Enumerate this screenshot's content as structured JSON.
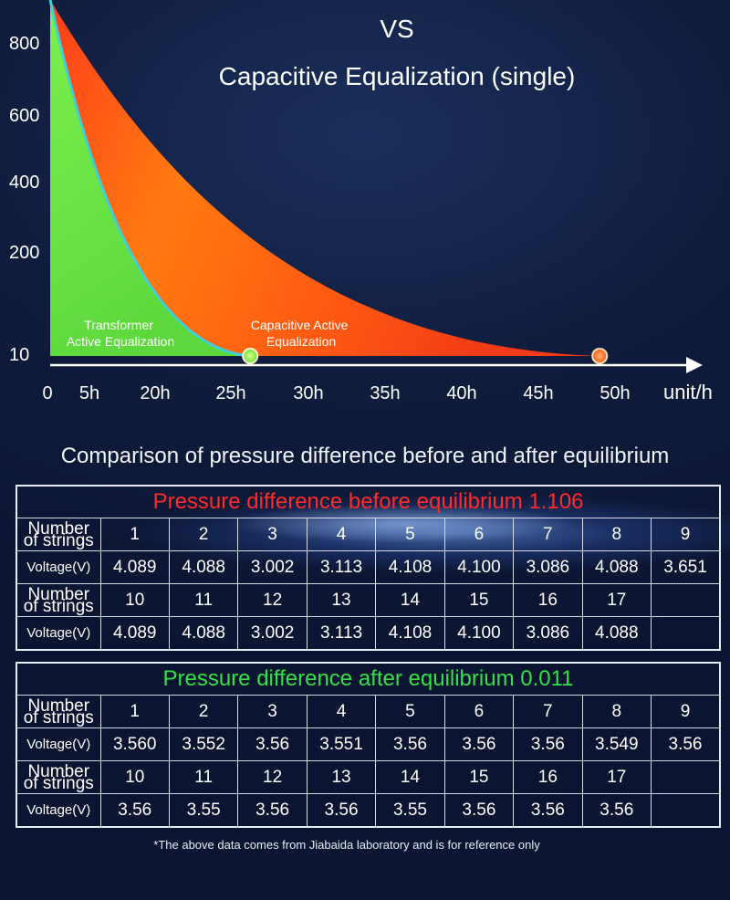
{
  "header": {
    "title_line1": "VS",
    "title_line2": "Capacitive Equalization (single)"
  },
  "chart_data": {
    "type": "area",
    "y_ticks": [
      "800",
      "600",
      "400",
      "200",
      "10"
    ],
    "x_ticks": [
      "0",
      "5h",
      "20h",
      "25h",
      "30h",
      "35h",
      "40h",
      "45h",
      "50h"
    ],
    "x_unit": "unit/h",
    "ylim": [
      10,
      900
    ],
    "series": [
      {
        "name": "Capacitive Active Equalization",
        "color": "#ff5a10",
        "start_y": 900,
        "end_x_position": 7.8,
        "end_y": 10
      },
      {
        "name": "Transformer Active Equalization",
        "color": "#7cf04e",
        "start_y": 900,
        "end_x_position": 3.25,
        "end_y": 10
      }
    ],
    "series_labels": {
      "transformer": [
        "Transformer",
        "Active Equalization"
      ],
      "capacitive": [
        "Capacitive Active",
        "Equalization"
      ]
    }
  },
  "comparison": {
    "heading": "Comparison of pressure difference before and after equilibrium",
    "row_label_strings": [
      "Number",
      "of strings"
    ],
    "row_label_voltage": "Voltage(V)",
    "before": {
      "caption": "Pressure difference before equilibrium 1.106",
      "strings_a": [
        "1",
        "2",
        "3",
        "4",
        "5",
        "6",
        "7",
        "8",
        "9"
      ],
      "voltages_a": [
        "4.089",
        "4.088",
        "3.002",
        "3.113",
        "4.108",
        "4.100",
        "3.086",
        "4.088",
        "3.651"
      ],
      "strings_b": [
        "10",
        "11",
        "12",
        "13",
        "14",
        "15",
        "16",
        "17",
        ""
      ],
      "voltages_b": [
        "4.089",
        "4.088",
        "3.002",
        "3.113",
        "4.108",
        "4.100",
        "3.086",
        "4.088",
        ""
      ]
    },
    "after": {
      "caption": "Pressure difference after equilibrium 0.011",
      "strings_a": [
        "1",
        "2",
        "3",
        "4",
        "5",
        "6",
        "7",
        "8",
        "9"
      ],
      "voltages_a": [
        "3.560",
        "3.552",
        "3.56",
        "3.551",
        "3.56",
        "3.56",
        "3.56",
        "3.549",
        "3.56"
      ],
      "strings_b": [
        "10",
        "11",
        "12",
        "13",
        "14",
        "15",
        "16",
        "17",
        ""
      ],
      "voltages_b": [
        "3.56",
        "3.55",
        "3.56",
        "3.56",
        "3.55",
        "3.56",
        "3.56",
        "3.56",
        ""
      ]
    }
  },
  "footnote": "*The above data comes from Jiabaida laboratory and is for reference only"
}
